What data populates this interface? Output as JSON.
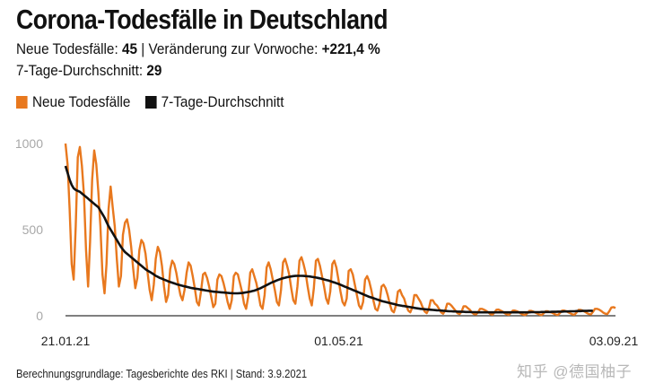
{
  "header": {
    "title": "Corona-Todesfälle in Deutschland",
    "new_deaths_label": "Neue Todesfälle:",
    "new_deaths_value": "45",
    "separator": "|",
    "change_label": "Veränderung zur Vorwoche:",
    "change_value": "+221,4 %",
    "avg_label": "7-Tage-Durchschnitt:",
    "avg_value": "29"
  },
  "footer": {
    "source": "Berechnungsgrundlage: Tagesberichte des RKI | Stand: 3.9.2021",
    "watermark": "知乎 @德国柚子"
  },
  "chart_data": {
    "type": "line",
    "x_ticks": [
      "21.01.21",
      "01.05.21",
      "03.09.21"
    ],
    "ylim": [
      0,
      1000
    ],
    "y_ticks": [
      "0",
      "500",
      "1000"
    ],
    "grid": false,
    "legend_position": "top-left",
    "series": [
      {
        "name": "Neue Todesfälle",
        "color": "#e8781e",
        "values": [
          1000,
          880,
          620,
          300,
          210,
          520,
          920,
          980,
          870,
          700,
          380,
          170,
          430,
          790,
          960,
          880,
          720,
          520,
          240,
          130,
          300,
          620,
          750,
          630,
          520,
          330,
          170,
          230,
          470,
          540,
          560,
          500,
          400,
          270,
          160,
          220,
          380,
          440,
          420,
          360,
          250,
          150,
          90,
          180,
          330,
          400,
          370,
          290,
          170,
          80,
          120,
          270,
          320,
          300,
          250,
          180,
          120,
          90,
          150,
          250,
          310,
          290,
          230,
          160,
          80,
          60,
          140,
          240,
          250,
          220,
          170,
          110,
          50,
          70,
          210,
          240,
          230,
          190,
          140,
          80,
          40,
          90,
          230,
          250,
          240,
          190,
          140,
          70,
          40,
          110,
          250,
          270,
          230,
          190,
          130,
          60,
          40,
          120,
          280,
          310,
          270,
          210,
          150,
          80,
          60,
          150,
          310,
          330,
          290,
          240,
          160,
          90,
          70,
          170,
          320,
          340,
          300,
          250,
          170,
          100,
          60,
          160,
          320,
          330,
          290,
          230,
          170,
          100,
          70,
          140,
          300,
          320,
          280,
          210,
          140,
          80,
          60,
          100,
          260,
          270,
          240,
          180,
          120,
          60,
          40,
          80,
          210,
          230,
          200,
          150,
          90,
          40,
          30,
          70,
          170,
          180,
          160,
          120,
          70,
          30,
          20,
          60,
          140,
          150,
          120,
          100,
          60,
          30,
          20,
          50,
          120,
          120,
          100,
          80,
          50,
          25,
          15,
          40,
          90,
          90,
          70,
          60,
          40,
          20,
          12,
          30,
          70,
          70,
          60,
          45,
          30,
          15,
          10,
          25,
          55,
          55,
          45,
          35,
          20,
          10,
          8,
          20,
          40,
          40,
          35,
          28,
          20,
          10,
          6,
          18,
          35,
          36,
          30,
          24,
          15,
          8,
          5,
          16,
          30,
          30,
          26,
          20,
          12,
          6,
          4,
          14,
          28,
          28,
          24,
          18,
          12,
          6,
          4,
          14,
          26,
          26,
          22,
          18,
          12,
          6,
          5,
          16,
          30,
          30,
          26,
          20,
          14,
          8,
          6,
          18,
          34,
          34,
          30,
          24,
          16,
          10,
          8,
          22,
          40,
          40,
          36,
          28,
          18,
          12,
          10,
          26,
          48,
          50,
          45
        ]
      },
      {
        "name": "7-Tage-Durchschnitt",
        "color": "#111111",
        "values": [
          870,
          830,
          790,
          760,
          740,
          730,
          725,
          720,
          710,
          700,
          690,
          680,
          670,
          660,
          650,
          640,
          630,
          610,
          590,
          570,
          545,
          520,
          500,
          480,
          460,
          440,
          420,
          400,
          385,
          370,
          360,
          350,
          340,
          330,
          320,
          310,
          300,
          290,
          280,
          270,
          262,
          255,
          248,
          240,
          232,
          226,
          220,
          215,
          210,
          205,
          200,
          196,
          192,
          188,
          184,
          180,
          177,
          174,
          171,
          168,
          165,
          162,
          160,
          158,
          156,
          154,
          152,
          150,
          148,
          146,
          144,
          142,
          140,
          139,
          138,
          137,
          136,
          135,
          134,
          133,
          132,
          131,
          130,
          130,
          130,
          131,
          132,
          134,
          136,
          138,
          140,
          143,
          146,
          150,
          155,
          160,
          166,
          172,
          178,
          184,
          190,
          196,
          200,
          205,
          210,
          214,
          218,
          221,
          224,
          226,
          228,
          230,
          231,
          232,
          232,
          232,
          231,
          230,
          229,
          228,
          226,
          224,
          222,
          220,
          217,
          214,
          211,
          208,
          205,
          201,
          197,
          193,
          189,
          185,
          180,
          175,
          170,
          165,
          160,
          155,
          150,
          145,
          140,
          135,
          130,
          125,
          120,
          115,
          110,
          106,
          102,
          98,
          94,
          90,
          86,
          83,
          80,
          77,
          74,
          71,
          68,
          65,
          62,
          60,
          58,
          56,
          54,
          52,
          50,
          48,
          46,
          44,
          42,
          40,
          39,
          38,
          37,
          36,
          35,
          34,
          33,
          32,
          31,
          30,
          29,
          28,
          27,
          26,
          26,
          25,
          25,
          24,
          24,
          23,
          23,
          22,
          22,
          22,
          21,
          21,
          21,
          20,
          20,
          20,
          20,
          20,
          20,
          20,
          20,
          20,
          20,
          20,
          20,
          20,
          20,
          20,
          20,
          20,
          20,
          20,
          20,
          20,
          20,
          20,
          20,
          20,
          20,
          21,
          21,
          21,
          21,
          21,
          22,
          22,
          22,
          22,
          22,
          23,
          23,
          23,
          24,
          24,
          24,
          25,
          25,
          25,
          26,
          26,
          26,
          27,
          27,
          27,
          28,
          28,
          28,
          29,
          29,
          29
        ]
      }
    ]
  }
}
